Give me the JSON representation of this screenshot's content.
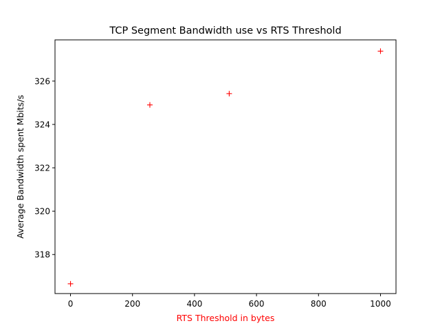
{
  "chart_data": {
    "type": "scatter",
    "title": "TCP Segment Bandwidth use vs RTS Threshold",
    "xlabel": "RTS Threshold in bytes",
    "ylabel": "Average Bandwidth spent Mbits/s",
    "xlim": [
      -50,
      1050
    ],
    "ylim": [
      316.2,
      327.9
    ],
    "x_ticks": [
      0,
      200,
      400,
      600,
      800,
      1000
    ],
    "y_ticks": [
      318,
      320,
      322,
      324,
      326
    ],
    "x_tick_labels": [
      "0",
      "200",
      "400",
      "600",
      "800",
      "1000"
    ],
    "y_tick_labels": [
      "318",
      "320",
      "322",
      "324",
      "326"
    ],
    "grid": false,
    "series": [
      {
        "marker": "+",
        "color": "#ff0000",
        "x": [
          0,
          256,
          512,
          1000
        ],
        "y": [
          316.65,
          324.9,
          325.42,
          327.38
        ]
      }
    ],
    "xlabel_color": "#ff0000",
    "axis_color": "#000000"
  }
}
